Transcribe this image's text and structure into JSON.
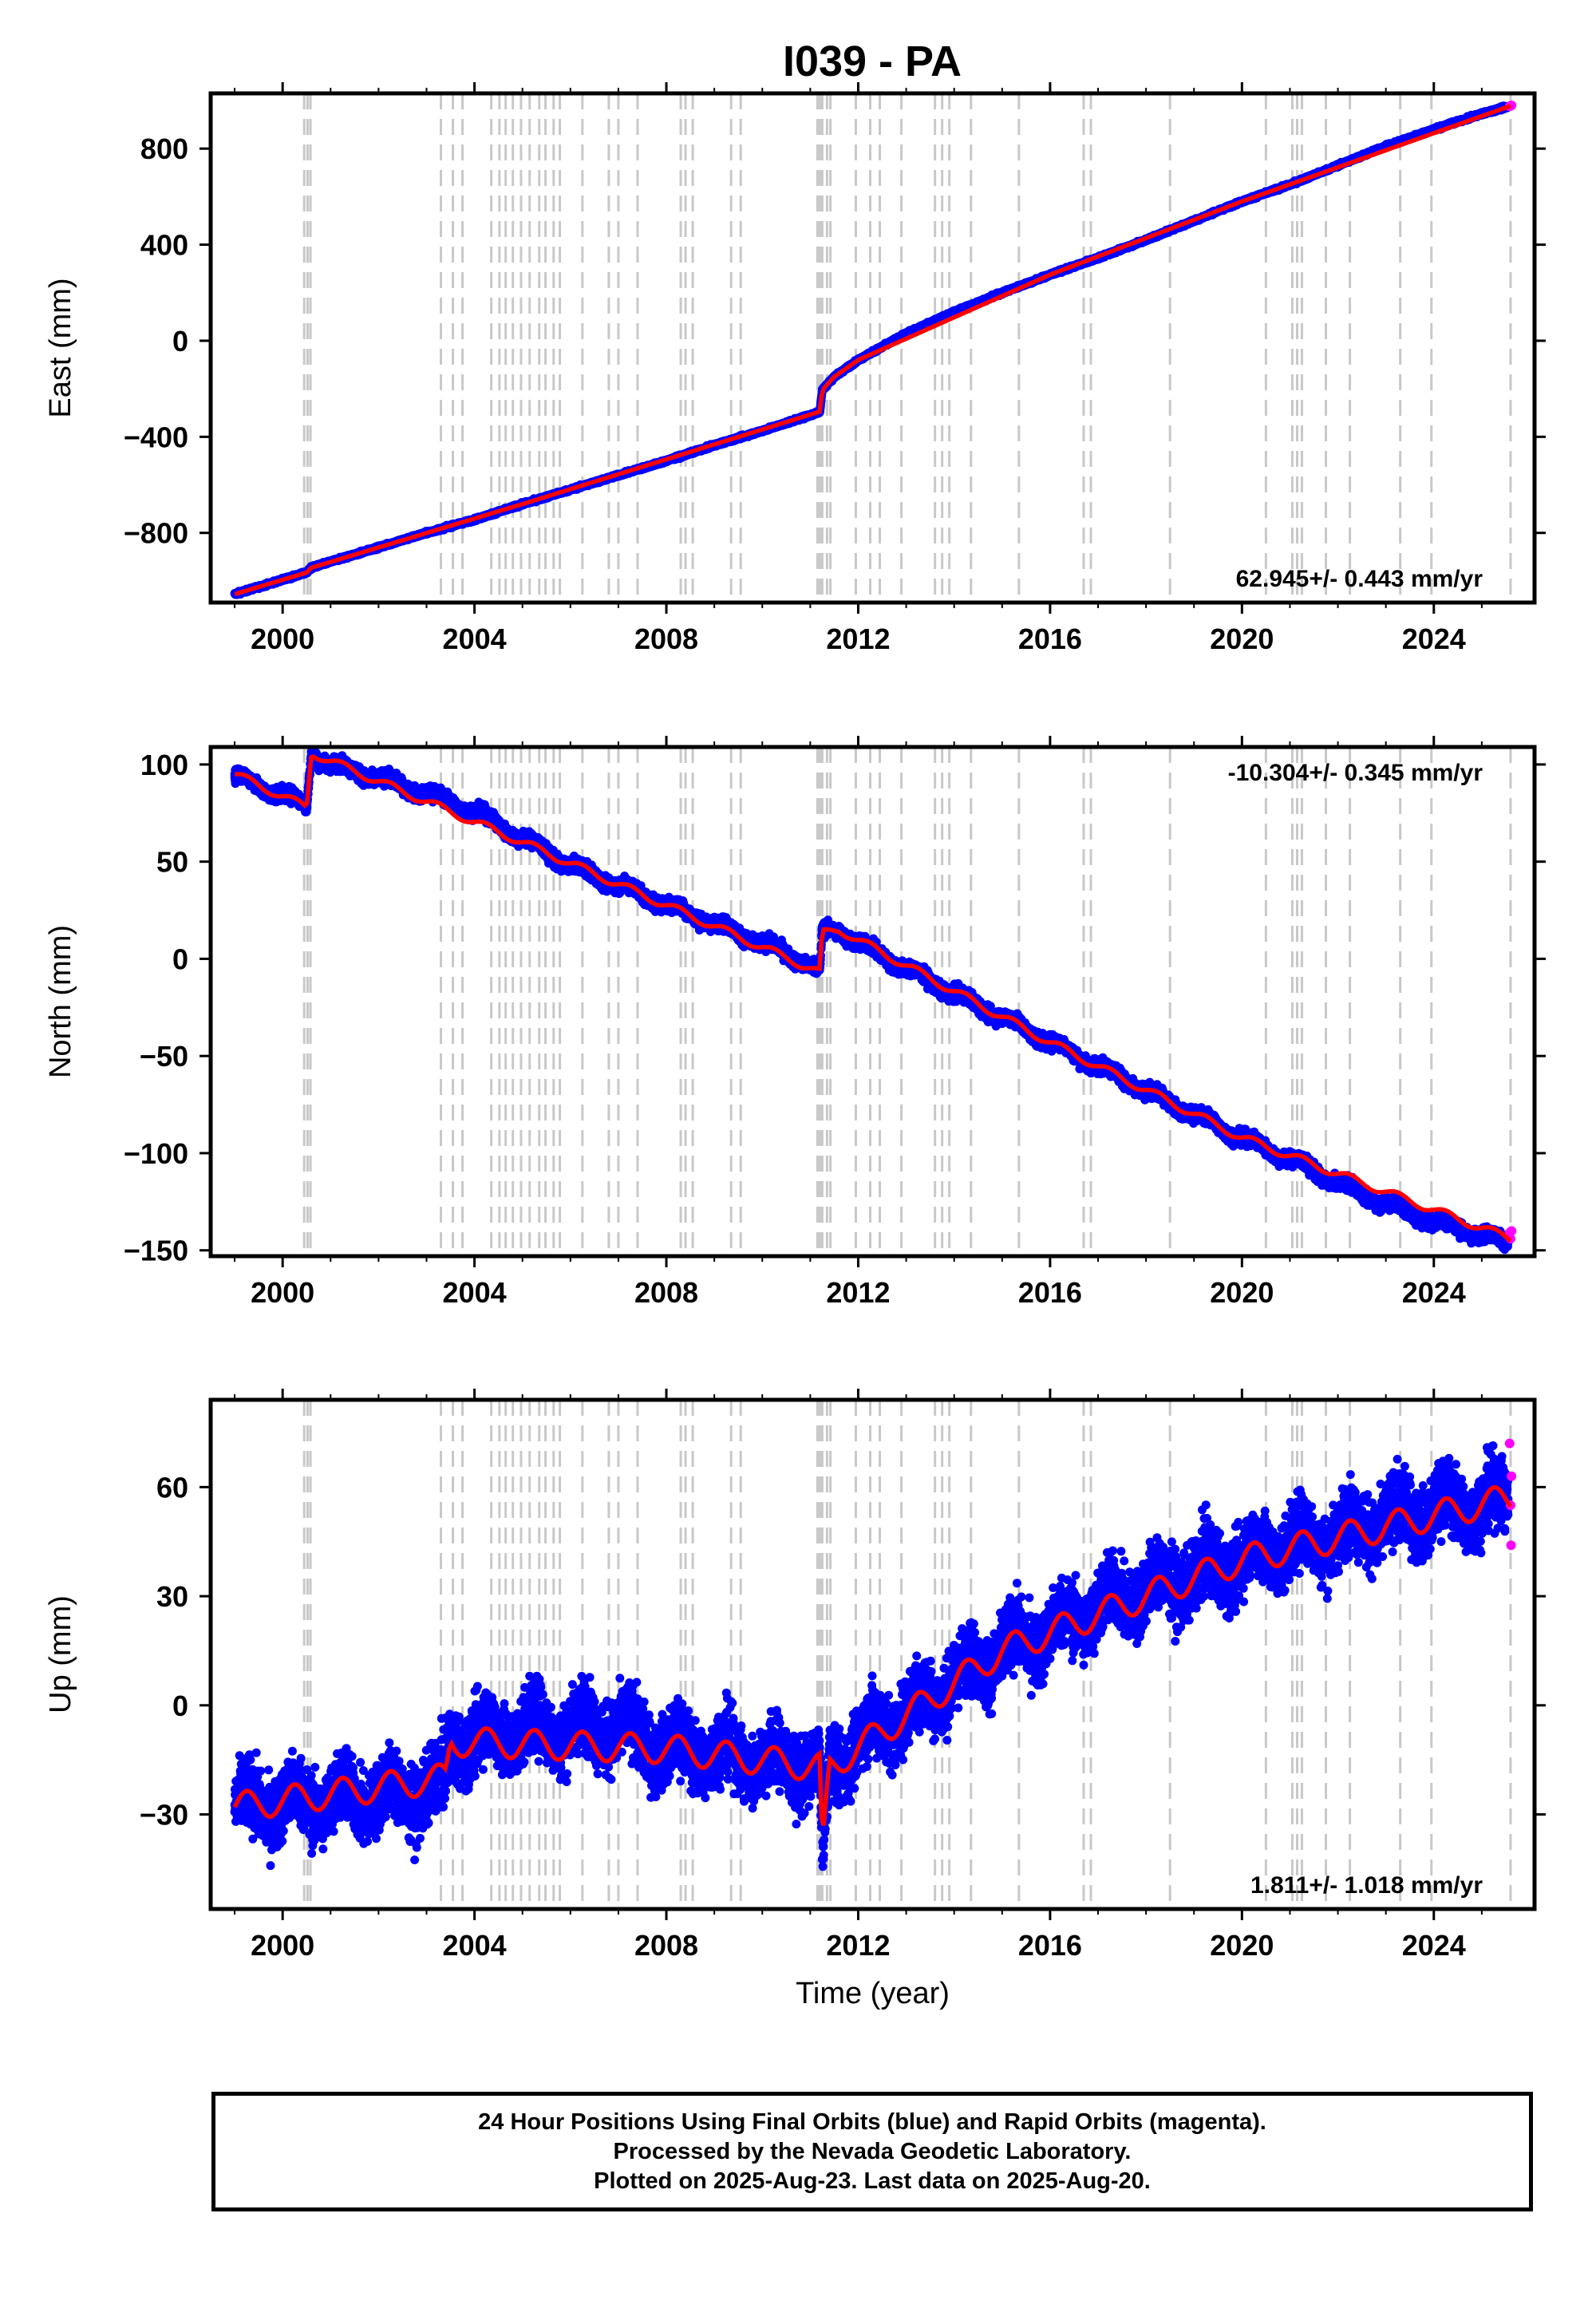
{
  "title": "I039 - PA",
  "colors": {
    "final": "#0000ff",
    "rapid": "#ff00ff",
    "model": "#ff0000",
    "steps": "#c8c8c8",
    "frame": "#000000"
  },
  "chart_data": [
    {
      "type": "scatter",
      "panel": "east",
      "ylabel": "East (mm)",
      "xlabel": "",
      "xlim": [
        1998.5,
        2026.1
      ],
      "ylim": [
        -1090,
        1030
      ],
      "xticks": [
        2000,
        2004,
        2008,
        2012,
        2016,
        2020,
        2024
      ],
      "xtick_labels": [
        "2000",
        "2004",
        "2008",
        "2012",
        "2016",
        "2020",
        "2024"
      ],
      "yticks": [
        -800,
        -400,
        0,
        400,
        800
      ],
      "ytick_labels": [
        "−800",
        "−400",
        "0",
        "400",
        "800"
      ],
      "rate_label": "62.945+/- 0.443 mm/yr",
      "rate_position": "bottom-right",
      "series": [
        {
          "name": "Final Orbits",
          "points": [
            [
              1999.0,
              -1055
            ],
            [
              1999.5,
              -1025
            ],
            [
              2000.0,
              -995
            ],
            [
              2000.5,
              -965
            ],
            [
              2000.6,
              -945
            ],
            [
              2001.0,
              -920
            ],
            [
              2002.0,
              -860
            ],
            [
              2003.0,
              -800
            ],
            [
              2004.0,
              -745
            ],
            [
              2005.0,
              -680
            ],
            [
              2006.0,
              -620
            ],
            [
              2007.0,
              -560
            ],
            [
              2008.0,
              -500
            ],
            [
              2009.0,
              -435
            ],
            [
              2010.0,
              -375
            ],
            [
              2011.0,
              -310
            ],
            [
              2011.2,
              -295
            ],
            [
              2011.25,
              -205
            ],
            [
              2011.5,
              -150
            ],
            [
              2012.0,
              -80
            ],
            [
              2013.0,
              30
            ],
            [
              2014.0,
              120
            ],
            [
              2015.0,
              200
            ],
            [
              2016.0,
              275
            ],
            [
              2017.0,
              345
            ],
            [
              2018.0,
              420
            ],
            [
              2019.0,
              500
            ],
            [
              2020.0,
              580
            ],
            [
              2021.0,
              650
            ],
            [
              2022.0,
              730
            ],
            [
              2023.0,
              810
            ],
            [
              2024.0,
              880
            ],
            [
              2025.0,
              945
            ],
            [
              2025.55,
              975
            ]
          ]
        },
        {
          "name": "Rapid Orbits",
          "points": [
            [
              2025.58,
              976
            ],
            [
              2025.6,
              978
            ],
            [
              2025.62,
              980
            ]
          ]
        },
        {
          "name": "Model",
          "points": [
            [
              1999.0,
              -1055
            ],
            [
              2000.5,
              -965
            ],
            [
              2000.6,
              -945
            ],
            [
              2005.0,
              -680
            ],
            [
              2011.2,
              -295
            ],
            [
              2011.25,
              -205
            ],
            [
              2011.5,
              -150
            ],
            [
              2012.0,
              -80
            ],
            [
              2016.0,
              275
            ],
            [
              2020.0,
              580
            ],
            [
              2025.6,
              978
            ]
          ]
        }
      ],
      "scatter_amplitude": 5
    },
    {
      "type": "scatter",
      "panel": "north",
      "ylabel": "North (mm)",
      "xlabel": "",
      "xlim": [
        1998.5,
        2026.1
      ],
      "ylim": [
        -153,
        109
      ],
      "xticks": [
        2000,
        2004,
        2008,
        2012,
        2016,
        2020,
        2024
      ],
      "xtick_labels": [
        "2000",
        "2004",
        "2008",
        "2012",
        "2016",
        "2020",
        "2024"
      ],
      "yticks": [
        -150,
        -100,
        -50,
        0,
        50,
        100
      ],
      "ytick_labels": [
        "−150",
        "−100",
        "−50",
        "0",
        "50",
        "100"
      ],
      "rate_label": "-10.304+/- 0.345 mm/yr",
      "rate_position": "top-right",
      "series": [
        {
          "name": "Final Orbits",
          "points": [
            [
              1999.0,
              95
            ],
            [
              1999.5,
              88
            ],
            [
              2000.0,
              85
            ],
            [
              2000.5,
              78
            ],
            [
              2000.6,
              106
            ],
            [
              2001.0,
              100
            ],
            [
              2002.0,
              93
            ],
            [
              2003.0,
              85
            ],
            [
              2004.0,
              76
            ],
            [
              2005.0,
              62
            ],
            [
              2006.0,
              48
            ],
            [
              2007.0,
              38
            ],
            [
              2008.0,
              28
            ],
            [
              2009.0,
              18
            ],
            [
              2010.0,
              8
            ],
            [
              2011.0,
              -3
            ],
            [
              2011.2,
              -7
            ],
            [
              2011.25,
              13
            ],
            [
              2011.6,
              15
            ],
            [
              2012.0,
              8
            ],
            [
              2013.0,
              -5
            ],
            [
              2014.0,
              -18
            ],
            [
              2015.0,
              -30
            ],
            [
              2016.0,
              -43
            ],
            [
              2017.0,
              -55
            ],
            [
              2018.0,
              -68
            ],
            [
              2019.0,
              -80
            ],
            [
              2020.0,
              -92
            ],
            [
              2021.0,
              -103
            ],
            [
              2022.0,
              -115
            ],
            [
              2023.0,
              -126
            ],
            [
              2024.0,
              -135
            ],
            [
              2025.0,
              -142
            ],
            [
              2025.55,
              -146
            ]
          ]
        },
        {
          "name": "Rapid Orbits",
          "points": [
            [
              2025.58,
              -141
            ],
            [
              2025.6,
              -144
            ],
            [
              2025.62,
              -140
            ]
          ]
        },
        {
          "name": "Model",
          "points": [
            [
              1999.0,
              95
            ],
            [
              2000.5,
              78
            ],
            [
              2000.6,
              106
            ],
            [
              2005.0,
              60
            ],
            [
              2011.2,
              -7
            ],
            [
              2011.25,
              13
            ],
            [
              2011.6,
              15
            ],
            [
              2016.0,
              -43
            ],
            [
              2020.0,
              -92
            ],
            [
              2025.6,
              -144
            ]
          ]
        }
      ],
      "scatter_amplitude": 3,
      "seasonal_amplitude": 2
    },
    {
      "type": "scatter",
      "panel": "up",
      "ylabel": "Up (mm)",
      "xlabel": "Time (year)",
      "xlim": [
        1998.5,
        2026.1
      ],
      "ylim": [
        -56,
        84
      ],
      "xticks": [
        2000,
        2004,
        2008,
        2012,
        2016,
        2020,
        2024
      ],
      "xtick_labels": [
        "2000",
        "2004",
        "2008",
        "2012",
        "2016",
        "2020",
        "2024"
      ],
      "yticks": [
        -30,
        0,
        30,
        60
      ],
      "ytick_labels": [
        "−30",
        "0",
        "30",
        "60"
      ],
      "rate_label": "1.811+/- 1.018 mm/yr",
      "rate_position": "bottom-right",
      "series": [
        {
          "name": "Final Orbits",
          "points": [
            [
              1999.0,
              -28
            ],
            [
              2000.0,
              -27
            ],
            [
              2001.0,
              -26
            ],
            [
              2002.0,
              -25
            ],
            [
              2003.0,
              -24
            ],
            [
              2003.4,
              -20
            ],
            [
              2003.5,
              -10
            ],
            [
              2004.0,
              -9
            ],
            [
              2005.0,
              -7
            ],
            [
              2006.0,
              -6
            ],
            [
              2007.0,
              -6
            ],
            [
              2008.0,
              -12
            ],
            [
              2009.0,
              -13
            ],
            [
              2010.0,
              -15
            ],
            [
              2011.0,
              -17
            ],
            [
              2011.2,
              -17
            ],
            [
              2011.25,
              -42
            ],
            [
              2011.4,
              -17
            ],
            [
              2012.0,
              -10
            ],
            [
              2013.0,
              -2
            ],
            [
              2014.0,
              7
            ],
            [
              2015.0,
              15
            ],
            [
              2016.0,
              20
            ],
            [
              2017.0,
              27
            ],
            [
              2018.0,
              32
            ],
            [
              2019.0,
              36
            ],
            [
              2020.0,
              40
            ],
            [
              2021.0,
              44
            ],
            [
              2022.0,
              47
            ],
            [
              2023.0,
              51
            ],
            [
              2024.0,
              54
            ],
            [
              2025.0,
              55
            ],
            [
              2025.55,
              57
            ]
          ]
        },
        {
          "name": "Rapid Orbits",
          "points": [
            [
              2025.58,
              72
            ],
            [
              2025.6,
              55
            ],
            [
              2025.61,
              44
            ],
            [
              2025.62,
              63
            ]
          ]
        },
        {
          "name": "Model",
          "points": [
            [
              1999.0,
              -28
            ],
            [
              2003.4,
              -20
            ],
            [
              2003.5,
              -10
            ],
            [
              2008.0,
              -12
            ],
            [
              2011.2,
              -17
            ],
            [
              2011.25,
              -42
            ],
            [
              2011.4,
              -17
            ],
            [
              2015.0,
              15
            ],
            [
              2020.0,
              40
            ],
            [
              2025.6,
              57
            ]
          ]
        }
      ],
      "scatter_amplitude": 8,
      "seasonal_amplitude": 4
    }
  ],
  "step_epochs": [
    2000.45,
    2000.52,
    2000.58,
    2003.3,
    2003.55,
    2003.75,
    2004.35,
    2004.52,
    2004.65,
    2004.8,
    2004.97,
    2005.15,
    2005.35,
    2005.48,
    2005.65,
    2005.78,
    2006.25,
    2006.8,
    2007.0,
    2007.4,
    2008.3,
    2008.4,
    2008.55,
    2009.35,
    2009.55,
    2011.15,
    2011.2,
    2011.25,
    2011.35,
    2011.42,
    2011.95,
    2012.25,
    2012.45,
    2012.9,
    2013.6,
    2013.75,
    2013.9,
    2014.35,
    2015.35,
    2016.7,
    2016.85,
    2018.5,
    2020.5,
    2021.05,
    2021.15,
    2021.25,
    2021.75,
    2022.25,
    2023.3,
    2023.95,
    2025.6
  ],
  "footer": {
    "line1": "24 Hour Positions Using Final Orbits (blue) and Rapid Orbits (magenta).",
    "line2": "Processed by the Nevada Geodetic Laboratory.",
    "line3": "Plotted on 2025-Aug-23. Last data on 2025-Aug-20."
  }
}
